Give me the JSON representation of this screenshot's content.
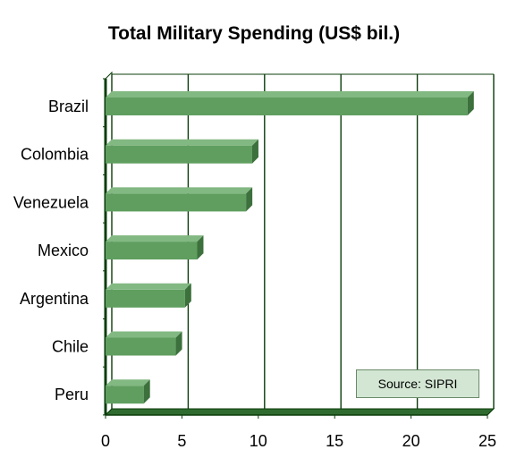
{
  "chart_data": {
    "type": "bar",
    "orientation": "horizontal",
    "title": "Total Military Spending (US$ bil.)",
    "categories": [
      "Brazil",
      "Colombia",
      "Venezuela",
      "Mexico",
      "Argentina",
      "Chile",
      "Peru"
    ],
    "values": [
      23.7,
      9.6,
      9.2,
      6.0,
      5.2,
      4.6,
      2.5
    ],
    "xlim": [
      0,
      25
    ],
    "xticks": [
      0,
      5,
      10,
      15,
      20,
      25
    ],
    "xlabel": "",
    "ylabel": "",
    "grid": "vertical",
    "legend": "none",
    "source_note": "Source: SIPRI",
    "colors": {
      "bar_front": "#5f9e5f",
      "bar_top": "#82b882",
      "bar_side": "#3c703c",
      "grid": "#0b3d0b",
      "floor": "#2f6b2f",
      "source_bg": "#d3e6d3"
    }
  }
}
